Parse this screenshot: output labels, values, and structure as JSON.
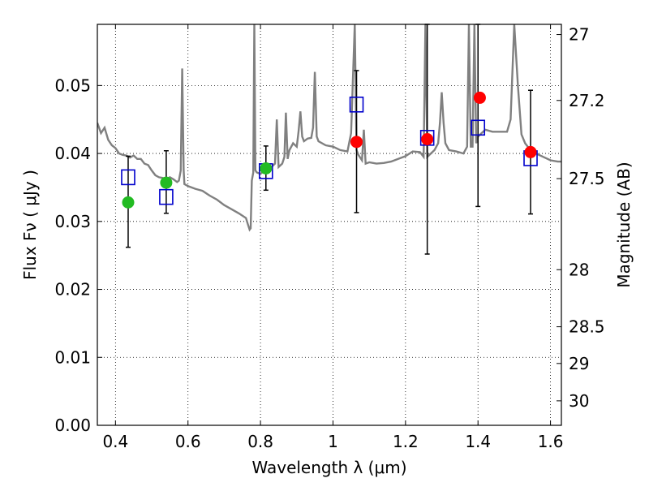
{
  "chart_data": {
    "type": "scatter",
    "title": "",
    "xlabel": "Wavelength  λ (μm)",
    "ylabel": "Flux  Fν  ( μJy )",
    "y2label": "Magnitude (AB)",
    "xlim": [
      0.35,
      1.63
    ],
    "ylim": [
      0.0,
      0.059
    ],
    "grid": true,
    "x_ticks": [
      0.4,
      0.6,
      0.8,
      1.0,
      1.2,
      1.4,
      1.6
    ],
    "x_tick_labels": [
      "0.4",
      "0.6",
      "0.8",
      "1",
      "1.2",
      "1.4",
      "1.6"
    ],
    "y_ticks": [
      0.0,
      0.01,
      0.02,
      0.03,
      0.04,
      0.05
    ],
    "y_tick_labels": [
      "0.00",
      "0.01",
      "0.02",
      "0.03",
      "0.04",
      "0.05"
    ],
    "y2_ticks": [
      {
        "label": "27",
        "flux": 0.0575
      },
      {
        "label": "27.2",
        "flux": 0.0478
      },
      {
        "label": "27.5",
        "flux": 0.0363
      },
      {
        "label": "28",
        "flux": 0.0229
      },
      {
        "label": "28.5",
        "flux": 0.0145
      },
      {
        "label": "29",
        "flux": 0.0091
      },
      {
        "label": "30",
        "flux": 0.0036
      }
    ],
    "series": [
      {
        "kind": "line",
        "color": "#808080",
        "points": [
          [
            0.35,
            0.0445
          ],
          [
            0.36,
            0.043
          ],
          [
            0.37,
            0.0438
          ],
          [
            0.38,
            0.042
          ],
          [
            0.39,
            0.0412
          ],
          [
            0.4,
            0.0408
          ],
          [
            0.41,
            0.04
          ],
          [
            0.42,
            0.0398
          ],
          [
            0.43,
            0.0397
          ],
          [
            0.44,
            0.0394
          ],
          [
            0.45,
            0.0397
          ],
          [
            0.46,
            0.0392
          ],
          [
            0.47,
            0.0392
          ],
          [
            0.48,
            0.0385
          ],
          [
            0.49,
            0.0383
          ],
          [
            0.5,
            0.0375
          ],
          [
            0.51,
            0.0368
          ],
          [
            0.52,
            0.0365
          ],
          [
            0.53,
            0.0364
          ],
          [
            0.54,
            0.0362
          ],
          [
            0.55,
            0.0365
          ],
          [
            0.56,
            0.0362
          ],
          [
            0.57,
            0.0358
          ],
          [
            0.575,
            0.036
          ],
          [
            0.58,
            0.0375
          ],
          [
            0.584,
            0.0525
          ],
          [
            0.588,
            0.0375
          ],
          [
            0.59,
            0.0355
          ],
          [
            0.6,
            0.0352
          ],
          [
            0.62,
            0.0348
          ],
          [
            0.64,
            0.0345
          ],
          [
            0.66,
            0.0338
          ],
          [
            0.68,
            0.0332
          ],
          [
            0.7,
            0.0324
          ],
          [
            0.72,
            0.0318
          ],
          [
            0.74,
            0.0312
          ],
          [
            0.76,
            0.0305
          ],
          [
            0.765,
            0.0296
          ],
          [
            0.77,
            0.0288
          ],
          [
            0.773,
            0.029
          ],
          [
            0.776,
            0.036
          ],
          [
            0.78,
            0.0372
          ],
          [
            0.783,
            0.059
          ],
          [
            0.786,
            0.0375
          ],
          [
            0.79,
            0.0372
          ],
          [
            0.8,
            0.037
          ],
          [
            0.81,
            0.0375
          ],
          [
            0.82,
            0.0378
          ],
          [
            0.83,
            0.038
          ],
          [
            0.84,
            0.0385
          ],
          [
            0.845,
            0.045
          ],
          [
            0.85,
            0.038
          ],
          [
            0.86,
            0.0385
          ],
          [
            0.866,
            0.0395
          ],
          [
            0.87,
            0.046
          ],
          [
            0.875,
            0.0392
          ],
          [
            0.88,
            0.0405
          ],
          [
            0.89,
            0.0415
          ],
          [
            0.9,
            0.041
          ],
          [
            0.905,
            0.0432
          ],
          [
            0.91,
            0.0462
          ],
          [
            0.915,
            0.0425
          ],
          [
            0.92,
            0.0418
          ],
          [
            0.93,
            0.0422
          ],
          [
            0.94,
            0.0423
          ],
          [
            0.945,
            0.0438
          ],
          [
            0.95,
            0.052
          ],
          [
            0.955,
            0.0425
          ],
          [
            0.96,
            0.0418
          ],
          [
            0.98,
            0.0412
          ],
          [
            1.0,
            0.041
          ],
          [
            1.02,
            0.0405
          ],
          [
            1.04,
            0.0403
          ],
          [
            1.05,
            0.043
          ],
          [
            1.06,
            0.059
          ],
          [
            1.065,
            0.0405
          ],
          [
            1.07,
            0.0398
          ],
          [
            1.08,
            0.039
          ],
          [
            1.085,
            0.0435
          ],
          [
            1.09,
            0.0385
          ],
          [
            1.1,
            0.0387
          ],
          [
            1.12,
            0.0385
          ],
          [
            1.14,
            0.0386
          ],
          [
            1.16,
            0.0388
          ],
          [
            1.18,
            0.0392
          ],
          [
            1.2,
            0.0396
          ],
          [
            1.22,
            0.0403
          ],
          [
            1.24,
            0.0402
          ],
          [
            1.25,
            0.0395
          ],
          [
            1.255,
            0.059
          ],
          [
            1.26,
            0.0395
          ],
          [
            1.27,
            0.04
          ],
          [
            1.28,
            0.0405
          ],
          [
            1.29,
            0.0415
          ],
          [
            1.295,
            0.0445
          ],
          [
            1.3,
            0.049
          ],
          [
            1.305,
            0.0445
          ],
          [
            1.31,
            0.0415
          ],
          [
            1.32,
            0.0405
          ],
          [
            1.34,
            0.0403
          ],
          [
            1.36,
            0.04
          ],
          [
            1.37,
            0.041
          ],
          [
            1.375,
            0.059
          ],
          [
            1.38,
            0.041
          ],
          [
            1.385,
            0.041
          ],
          [
            1.39,
            0.059
          ],
          [
            1.395,
            0.0415
          ],
          [
            1.4,
            0.0425
          ],
          [
            1.41,
            0.043
          ],
          [
            1.42,
            0.0435
          ],
          [
            1.44,
            0.0432
          ],
          [
            1.46,
            0.0432
          ],
          [
            1.48,
            0.0432
          ],
          [
            1.49,
            0.045
          ],
          [
            1.5,
            0.059
          ],
          [
            1.51,
            0.05
          ],
          [
            1.52,
            0.0428
          ],
          [
            1.53,
            0.0415
          ],
          [
            1.54,
            0.0408
          ],
          [
            1.56,
            0.04
          ],
          [
            1.58,
            0.0395
          ],
          [
            1.6,
            0.039
          ],
          [
            1.62,
            0.0388
          ],
          [
            1.63,
            0.0388
          ]
        ]
      },
      {
        "kind": "errorbar_squares",
        "color": "#0000cc",
        "points": [
          {
            "x": 0.435,
            "y": 0.0365,
            "lo": 0.0262,
            "hi": 0.0396
          },
          {
            "x": 0.54,
            "y": 0.0336,
            "lo": 0.0312,
            "hi": 0.0404
          },
          {
            "x": 0.815,
            "y": 0.0374,
            "lo": 0.0346,
            "hi": 0.0411
          },
          {
            "x": 1.065,
            "y": 0.0472,
            "lo": 0.0313,
            "hi": 0.0522
          },
          {
            "x": 1.26,
            "y": 0.0423,
            "lo": 0.0252,
            "hi": 0.059
          },
          {
            "x": 1.4,
            "y": 0.0438,
            "lo": 0.0322,
            "hi": 0.059
          },
          {
            "x": 1.545,
            "y": 0.0393,
            "lo": 0.0311,
            "hi": 0.0493
          }
        ]
      },
      {
        "kind": "circles",
        "color": "#22bb22",
        "points": [
          [
            0.435,
            0.0328
          ],
          [
            0.54,
            0.0357
          ],
          [
            0.815,
            0.0378
          ]
        ]
      },
      {
        "kind": "circles",
        "color": "#ff0000",
        "points": [
          [
            1.065,
            0.0417
          ],
          [
            1.26,
            0.0421
          ],
          [
            1.405,
            0.0482
          ],
          [
            1.545,
            0.0402
          ]
        ]
      }
    ]
  }
}
